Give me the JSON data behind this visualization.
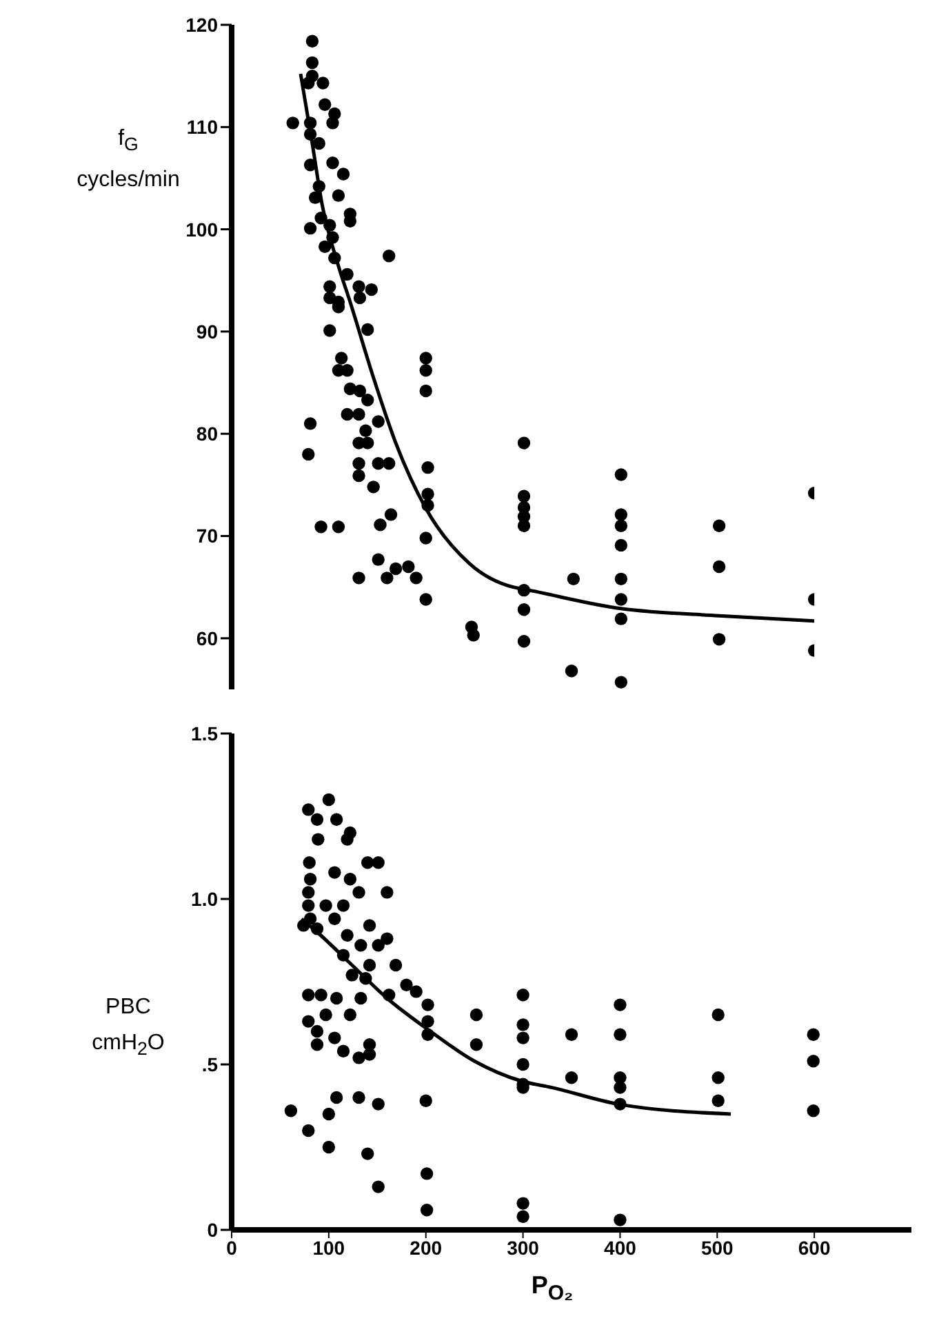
{
  "chart_data": [
    {
      "type": "scatter",
      "ylabel": "f$_{G}$ cycles/min",
      "xlim": [
        0,
        600
      ],
      "xticks": [
        0,
        100,
        200,
        300,
        400,
        500,
        600
      ],
      "ylim": [
        55,
        120
      ],
      "yticks": [
        60,
        70,
        80,
        90,
        100,
        110,
        120
      ],
      "tick_labels": "y",
      "grid": false,
      "legend": false,
      "marker": "circle",
      "series": [
        {
          "color": "#000000",
          "x": [
            83,
            83,
            83,
            79,
            94,
            96,
            106,
            104,
            63,
            81,
            81,
            90,
            81,
            104,
            115,
            90,
            86,
            110,
            122,
            122,
            81,
            92,
            101,
            104,
            96,
            106,
            162,
            119,
            101,
            131,
            144,
            101,
            110,
            132,
            101,
            140,
            110,
            113,
            110,
            119,
            122,
            132,
            140,
            119,
            131,
            151,
            81,
            138,
            131,
            140,
            200,
            200,
            200,
            79,
            131,
            151,
            162,
            131,
            146,
            202,
            202,
            202,
            200,
            200,
            92,
            110,
            153,
            164,
            151,
            131,
            160,
            169,
            182,
            190,
            301,
            301,
            301,
            301,
            301,
            301,
            301,
            301,
            247,
            249,
            352,
            350,
            401,
            401,
            401,
            401,
            401,
            401,
            401,
            401,
            502,
            502,
            502,
            600,
            600,
            600
          ],
          "values": [
            118.4,
            116.3,
            115,
            114.3,
            114.3,
            112.2,
            111.3,
            110.4,
            110.4,
            110.4,
            109.3,
            108.4,
            106.3,
            106.5,
            105.4,
            104.2,
            103.1,
            103.3,
            101.5,
            100.8,
            100.1,
            101.1,
            100.4,
            99.2,
            98.3,
            97.2,
            97.4,
            95.6,
            94.4,
            94.4,
            94.1,
            93.3,
            92.9,
            93.3,
            90.1,
            90.2,
            92.4,
            87.4,
            86.2,
            86.2,
            84.4,
            84.2,
            83.3,
            81.9,
            81.9,
            81.2,
            81,
            80.3,
            79.1,
            79.1,
            87.4,
            86.2,
            84.2,
            78,
            77.1,
            77.1,
            77.1,
            75.9,
            74.8,
            76.7,
            74.1,
            73,
            69.8,
            63.8,
            70.9,
            70.9,
            71.1,
            72.1,
            67.7,
            65.9,
            65.9,
            66.8,
            67,
            65.9,
            79.1,
            73.9,
            72.8,
            71.9,
            71,
            64.7,
            62.8,
            59.7,
            61.1,
            60.3,
            65.8,
            56.8,
            76,
            72.1,
            71,
            69.1,
            65.8,
            63.8,
            61.9,
            55.7,
            71,
            67,
            59.9,
            74.2,
            63.8,
            58.8
          ]
        },
        {
          "type": "line",
          "color": "#000000",
          "marker": "none",
          "x": [
            71,
            83,
            93,
            110,
            122,
            146,
            169,
            200,
            245,
            290,
            301,
            401,
            502,
            600
          ],
          "values": [
            115.2,
            108.4,
            102.5,
            96.4,
            92.9,
            85.5,
            79.1,
            72.7,
            67.3,
            65,
            64.8,
            62.9,
            62.2,
            61.7
          ]
        }
      ]
    },
    {
      "type": "scatter",
      "xlabel": "P$_{O₂}$",
      "ylabel": "PBC cmH$_{2}$O",
      "xlim": [
        0,
        700
      ],
      "xticks": [
        0,
        100,
        200,
        300,
        400,
        500,
        600
      ],
      "ylim": [
        0,
        1.5
      ],
      "yticks": [
        0,
        {
          "value": 0.5,
          "label": ".5"
        },
        {
          "value": 1,
          "label": "1.0"
        },
        {
          "value": 1.5,
          "label": "1.5"
        }
      ],
      "grid": false,
      "legend": false,
      "marker": "circle",
      "series": [
        {
          "color": "#000000",
          "x": [
            100,
            79,
            88,
            108,
            89,
            119,
            122,
            140,
            151,
            80,
            81,
            106,
            122,
            131,
            160,
            79,
            79,
            97,
            115,
            81,
            106,
            142,
            74,
            88,
            119,
            160,
            133,
            151,
            115,
            169,
            142,
            124,
            138,
            180,
            190,
            202,
            162,
            79,
            92,
            108,
            133,
            122,
            97,
            79,
            88,
            106,
            142,
            88,
            115,
            131,
            142,
            202,
            202,
            252,
            252,
            300,
            300,
            300,
            300,
            300,
            300,
            61,
            79,
            100,
            108,
            131,
            151,
            200,
            100,
            140,
            151,
            201,
            201,
            300,
            300,
            350,
            350,
            400,
            400,
            400,
            400,
            400,
            400,
            501,
            501,
            501,
            599,
            599,
            599
          ],
          "values": [
            1.3,
            1.27,
            1.24,
            1.24,
            1.18,
            1.18,
            1.2,
            1.11,
            1.11,
            1.11,
            1.06,
            1.08,
            1.06,
            1.02,
            1.02,
            1.02,
            0.98,
            0.98,
            0.98,
            0.94,
            0.94,
            0.92,
            0.92,
            0.91,
            0.89,
            0.88,
            0.86,
            0.86,
            0.83,
            0.8,
            0.8,
            0.77,
            0.76,
            0.74,
            0.72,
            0.68,
            0.71,
            0.71,
            0.71,
            0.7,
            0.7,
            0.65,
            0.65,
            0.63,
            0.6,
            0.58,
            0.56,
            0.56,
            0.54,
            0.52,
            0.53,
            0.63,
            0.59,
            0.65,
            0.56,
            0.71,
            0.62,
            0.58,
            0.5,
            0.44,
            0.43,
            0.36,
            0.3,
            0.35,
            0.4,
            0.4,
            0.38,
            0.39,
            0.25,
            0.23,
            0.13,
            0.17,
            0.06,
            0.08,
            0.04,
            0.59,
            0.46,
            0.68,
            0.59,
            0.46,
            0.43,
            0.38,
            0.03,
            0.65,
            0.46,
            0.39,
            0.59,
            0.51,
            0.36
          ]
        },
        {
          "type": "line",
          "color": "#000000",
          "marker": "none",
          "x": [
            72,
            88,
            124,
            160,
            200,
            250,
            298,
            330,
            398,
            514
          ],
          "values": [
            0.94,
            0.9,
            0.8,
            0.7,
            0.61,
            0.51,
            0.45,
            0.43,
            0.38,
            0.35
          ]
        }
      ]
    }
  ]
}
